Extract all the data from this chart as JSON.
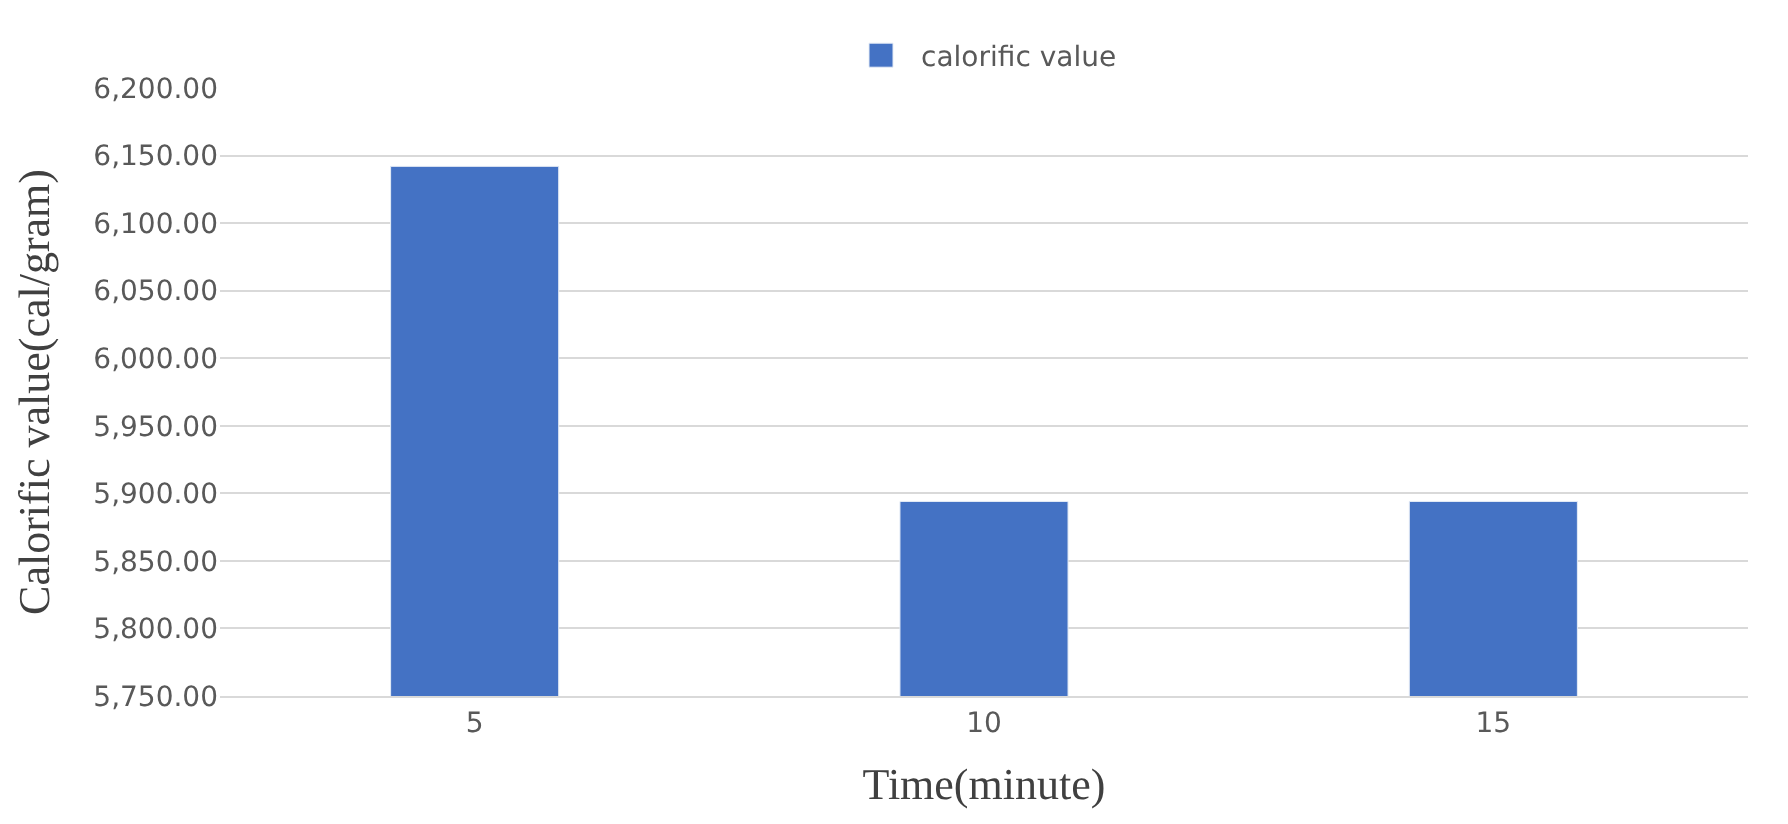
{
  "chart_data": {
    "type": "bar",
    "xlabel": "Time(minute)",
    "ylabel": "Calorific value(cal/gram)",
    "categories": [
      "5",
      "10",
      "15"
    ],
    "series": [
      {
        "name": "calorific value",
        "color": "#4472c4",
        "values": [
          6142,
          5894,
          5894
        ]
      }
    ],
    "ylim": [
      5750,
      6200
    ],
    "yticks": [
      {
        "value": 5750,
        "label": "5,750.00"
      },
      {
        "value": 5800,
        "label": "5,800.00"
      },
      {
        "value": 5850,
        "label": "5,850.00"
      },
      {
        "value": 5900,
        "label": "5,900.00"
      },
      {
        "value": 5950,
        "label": "5,950.00"
      },
      {
        "value": 6000,
        "label": "6,000.00"
      },
      {
        "value": 6050,
        "label": "6,050.00"
      },
      {
        "value": 6100,
        "label": "6,100.00"
      },
      {
        "value": 6150,
        "label": "6,150.00"
      },
      {
        "value": 6200,
        "label": "6,200.00"
      }
    ],
    "grid": "y",
    "legend": "top"
  }
}
